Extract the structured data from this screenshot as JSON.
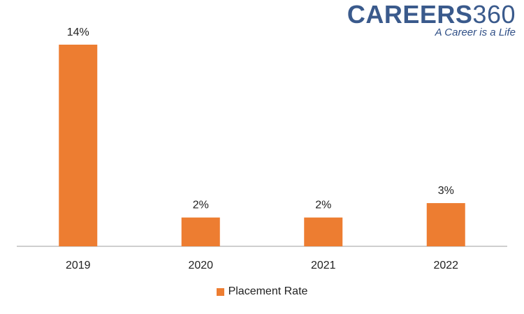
{
  "brand": {
    "name": "CAREERS",
    "number": "360",
    "tagline": "A Career is a Life"
  },
  "colors": {
    "bar": "#ED7D31",
    "axis": "#BFBFBF",
    "brand": "#3A5A8C"
  },
  "chart_data": {
    "type": "bar",
    "categories": [
      "2019",
      "2020",
      "2021",
      "2022"
    ],
    "series": [
      {
        "name": "Placement Rate",
        "values": [
          14,
          2,
          2,
          3
        ],
        "labels": [
          "14%",
          "2%",
          "2%",
          "3%"
        ]
      }
    ],
    "ylim": [
      0,
      14
    ],
    "grid": false,
    "legend": "bottom"
  }
}
